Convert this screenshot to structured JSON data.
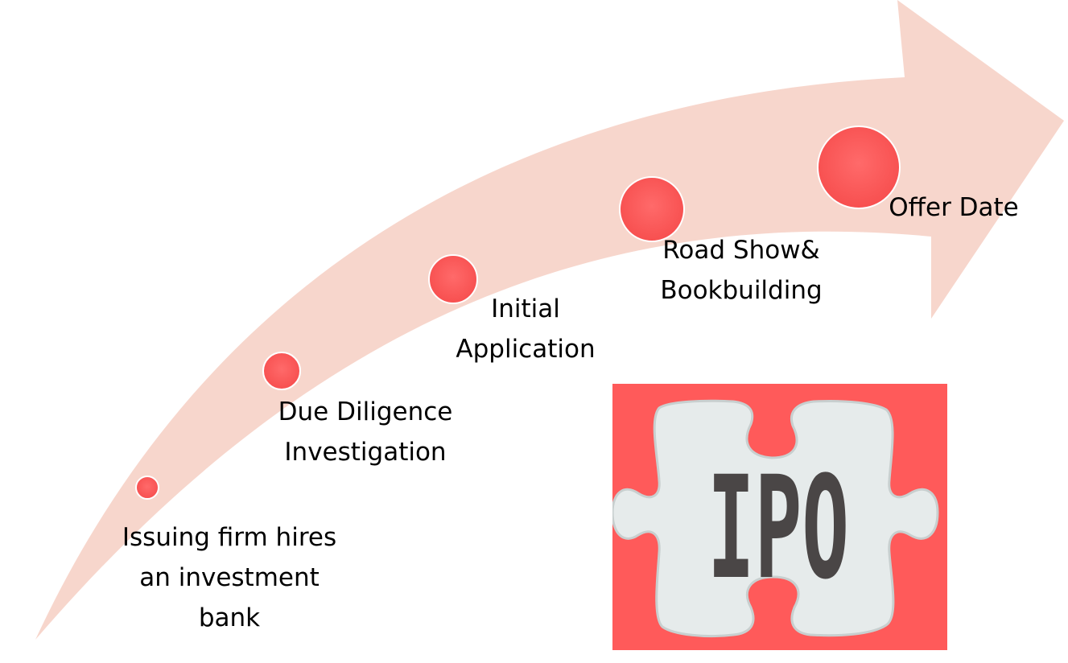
{
  "diagram": {
    "colors": {
      "arrow_fill": "#f7d6cc",
      "step_dot": "#ff5a5a",
      "step_dot_ring": "#ffffff",
      "badge_background": "#ff5a5a",
      "puzzle_piece": "#e6ebeb",
      "badge_text": "#4a4646"
    },
    "steps": [
      {
        "lines": [
          "Issuing firm hires",
          "an investment",
          "bank"
        ]
      },
      {
        "lines": [
          "Due Diligence",
          "Investigation"
        ]
      },
      {
        "lines": [
          "Initial",
          "Application"
        ]
      },
      {
        "lines": [
          "Road Show&",
          "Bookbuilding"
        ]
      },
      {
        "lines": [
          "Offer Date"
        ]
      }
    ],
    "badge": {
      "text": "IPO",
      "icon": "puzzle-piece-icon"
    }
  }
}
